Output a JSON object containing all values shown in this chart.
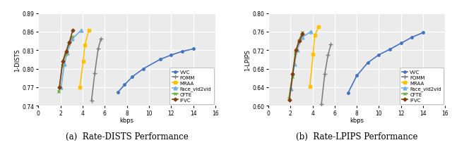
{
  "plot_a": {
    "xlabel": "kbps",
    "ylabel": "1-DISTS",
    "xlim": [
      0,
      16
    ],
    "ylim": [
      0.74,
      0.89
    ],
    "yticks": [
      0.74,
      0.77,
      0.8,
      0.83,
      0.86,
      0.89
    ],
    "xticks": [
      0,
      2,
      4,
      6,
      8,
      10,
      12,
      14,
      16
    ],
    "series": {
      "VVC": {
        "color": "#4472C4",
        "marker": "o",
        "markersize": 2.5,
        "linewidth": 1.2,
        "x": [
          7.2,
          7.8,
          8.5,
          9.5,
          11.0,
          12.0,
          13.0,
          14.0
        ],
        "y": [
          0.762,
          0.774,
          0.787,
          0.8,
          0.815,
          0.822,
          0.828,
          0.832
        ]
      },
      "FOMM": {
        "color": "#808080",
        "marker": "+",
        "markersize": 5,
        "linewidth": 1.2,
        "x": [
          4.8,
          5.1,
          5.4,
          5.65
        ],
        "y": [
          0.748,
          0.793,
          0.832,
          0.848
        ]
      },
      "MRAA": {
        "color": "#FFC000",
        "marker": "s",
        "markersize": 3.5,
        "linewidth": 1.2,
        "x": [
          3.75,
          4.05,
          4.2,
          4.55
        ],
        "y": [
          0.77,
          0.812,
          0.838,
          0.862
        ]
      },
      "Face_vid2vid": {
        "color": "#70B0E0",
        "marker": "^",
        "markersize": 3.5,
        "linewidth": 1.2,
        "x": [
          2.05,
          2.35,
          2.6,
          3.05,
          3.85
        ],
        "y": [
          0.77,
          0.808,
          0.826,
          0.848,
          0.862
        ]
      },
      "CFTE": {
        "color": "#70AD47",
        "marker": "x",
        "markersize": 3.5,
        "linewidth": 1.2,
        "x": [
          1.85,
          2.15,
          2.45,
          2.75,
          3.05
        ],
        "y": [
          0.763,
          0.805,
          0.823,
          0.84,
          0.852
        ]
      },
      "IFVC": {
        "color": "#843C0C",
        "marker": "D",
        "markersize": 2.5,
        "linewidth": 1.2,
        "x": [
          1.9,
          2.2,
          2.5,
          2.8,
          3.1
        ],
        "y": [
          0.77,
          0.812,
          0.828,
          0.843,
          0.862
        ]
      }
    }
  },
  "plot_b": {
    "xlabel": "kbps",
    "ylabel": "1-LPIPS",
    "xlim": [
      0,
      16
    ],
    "ylim": [
      0.6,
      0.8
    ],
    "yticks": [
      0.6,
      0.64,
      0.68,
      0.72,
      0.76,
      0.8
    ],
    "xticks": [
      0,
      2,
      4,
      6,
      8,
      10,
      12,
      14,
      16
    ],
    "series": {
      "VVC": {
        "color": "#4472C4",
        "marker": "o",
        "markersize": 2.5,
        "linewidth": 1.2,
        "x": [
          7.2,
          8.0,
          9.0,
          10.0,
          11.0,
          12.0,
          13.0,
          14.0
        ],
        "y": [
          0.627,
          0.665,
          0.693,
          0.71,
          0.722,
          0.735,
          0.748,
          0.758
        ]
      },
      "FOMM": {
        "color": "#808080",
        "marker": "+",
        "markersize": 5,
        "linewidth": 1.2,
        "x": [
          4.8,
          5.1,
          5.4,
          5.65
        ],
        "y": [
          0.603,
          0.668,
          0.71,
          0.732
        ]
      },
      "MRAA": {
        "color": "#FFC000",
        "marker": "s",
        "markersize": 3.5,
        "linewidth": 1.2,
        "x": [
          3.75,
          4.05,
          4.2,
          4.55
        ],
        "y": [
          0.642,
          0.712,
          0.752,
          0.77
        ]
      },
      "Face_vid2vid": {
        "color": "#70B0E0",
        "marker": "^",
        "markersize": 3.5,
        "linewidth": 1.2,
        "x": [
          2.05,
          2.35,
          2.6,
          3.05,
          3.85
        ],
        "y": [
          0.636,
          0.69,
          0.72,
          0.748,
          0.76
        ]
      },
      "CFTE": {
        "color": "#70AD47",
        "marker": "x",
        "markersize": 3.5,
        "linewidth": 1.2,
        "x": [
          1.85,
          2.15,
          2.45,
          2.75,
          3.05
        ],
        "y": [
          0.615,
          0.663,
          0.715,
          0.74,
          0.758
        ]
      },
      "IFVC": {
        "color": "#843C0C",
        "marker": "D",
        "markersize": 2.5,
        "linewidth": 1.2,
        "x": [
          1.9,
          2.2,
          2.5,
          2.8,
          3.1
        ],
        "y": [
          0.612,
          0.668,
          0.72,
          0.74,
          0.755
        ]
      }
    }
  },
  "legend_order": [
    "VVC",
    "FOMM",
    "MRAA",
    "Face_vid2vid",
    "CFTE",
    "IFVC"
  ],
  "legend_labels": [
    "VVC",
    "FOMM",
    "MRAA",
    "Face_vid2vid",
    "CFTE",
    "IFVC"
  ],
  "fig_caption_a": "(a)  Rate-DISTS Performance",
  "fig_caption_b": "(b)  Rate-LPIPS Performance",
  "background_color": "#EBEBEB"
}
